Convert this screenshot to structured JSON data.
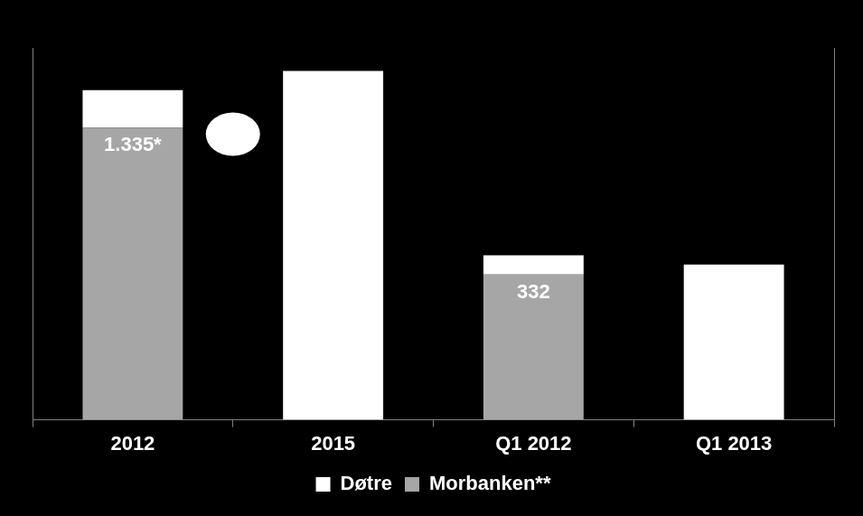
{
  "chart_data": [
    {
      "type": "bar",
      "categories": [
        "2012",
        "2015"
      ],
      "stacked": true,
      "legend": "bottom",
      "tick_labels": "x",
      "ylim": [
        0,
        1700
      ],
      "series": [
        {
          "name": "Døtre",
          "color": "#ffffff",
          "values": [
            172,
            1595
          ]
        },
        {
          "name": "Morbanken**",
          "color": "#a6a6a6",
          "values": [
            1335,
            null
          ],
          "data_labels": true,
          "value_labels": [
            "1.335*",
            null
          ]
        }
      ]
    },
    {
      "type": "bar",
      "categories": [
        "Q1 2012",
        "Q1 2013"
      ],
      "stacked": true,
      "tick_labels": "x",
      "ylim": [
        0,
        850
      ],
      "series": [
        {
          "name": "Døtre",
          "color": "#ffffff",
          "values": [
            44,
            355
          ]
        },
        {
          "name": "Morbanken**",
          "color": "#a6a6a6",
          "values": [
            332,
            null
          ],
          "data_labels": true,
          "value_labels": [
            "332",
            null
          ]
        }
      ]
    }
  ]
}
